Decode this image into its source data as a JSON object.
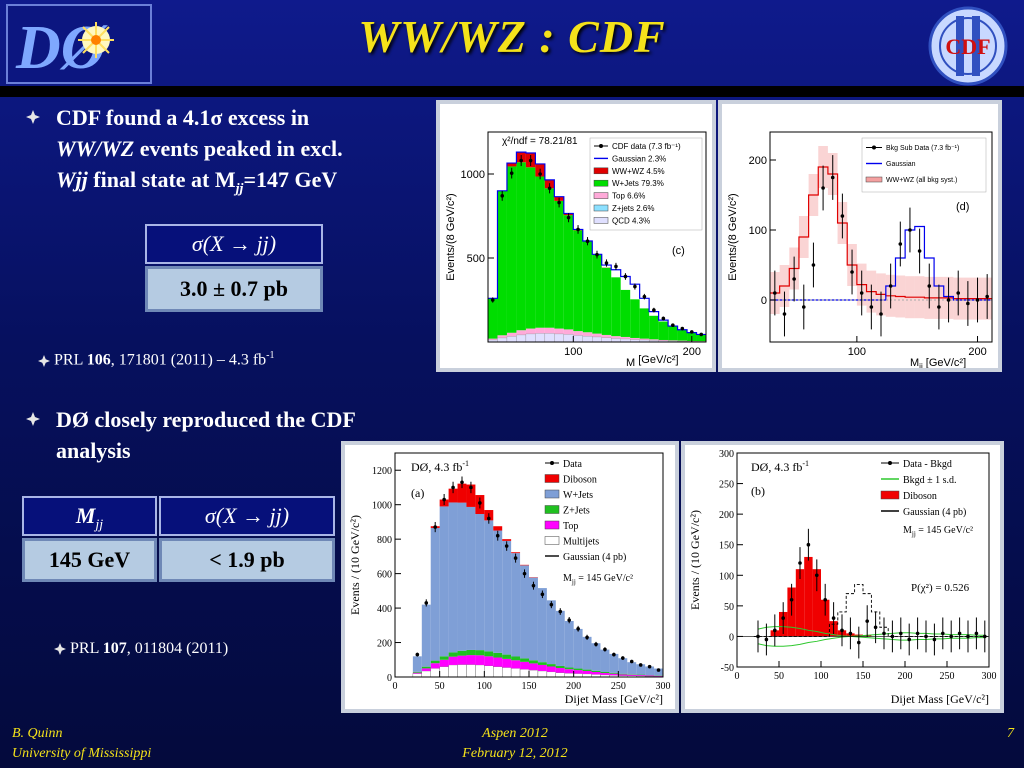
{
  "slide": {
    "title": "WW/WZ : CDF"
  },
  "logos": {
    "left": "DØ",
    "right": "CDF"
  },
  "bullets": {
    "cdf_found": {
      "l1": "CDF found a 4.1σ excess in",
      "l2a": "WW/WZ",
      "l2b": " events peaked in excl.",
      "l3a": "Wjj",
      "l3b": " final state at M",
      "l3sub": "jj",
      "l3c": "=147 GeV"
    },
    "cdf_box": {
      "header": "σ(X → jj)",
      "value": "3.0 ± 0.7 pb"
    },
    "cdf_ref": {
      "pre": "PRL ",
      "vol": "106",
      "post": ", 171801 (2011) – 4.3 fb",
      "sup": "-1"
    },
    "d0_repro": {
      "l1": "DØ closely reproduced the CDF",
      "l2": "analysis"
    },
    "d0_box": {
      "h1": "M",
      "h1sub": "jj",
      "h2": "σ(X → jj)",
      "v1": "145 GeV",
      "v2": "< 1.9 pb"
    },
    "d0_ref": {
      "pre": "PRL ",
      "vol": "107",
      "post": ", 011804 (2011)"
    }
  },
  "footer": {
    "author": "B. Quinn",
    "institution": "University of Mississippi",
    "conference": "Aspen 2012",
    "date": "February 12, 2012",
    "page": "7"
  },
  "chart_data": [
    {
      "type": "bar",
      "panel": "c",
      "ylabel": "Events/(8 GeV/c²)",
      "xlabel": "M",
      "xlabel_sub": "jj",
      "xlabel_unit": " [GeV/c²]",
      "chi2": "χ²/ndf = 78.21/81",
      "tag": "(c)",
      "xlim": [
        28,
        212
      ],
      "ylim": [
        0,
        1250
      ],
      "yticks": [
        500,
        1000
      ],
      "xticks": [
        100,
        200
      ],
      "legend": [
        "CDF data (7.3 fb⁻¹)",
        "Gaussian  2.3%",
        "WW+WZ 4.5%",
        "W+Jets 79.3%",
        "Top 6.6%",
        "Z+jets 2.6%",
        "QCD 4.3%"
      ],
      "colors": {
        "qcd": "#e0e0ff",
        "zjets": "#8ce0ff",
        "top": "#ffaad9",
        "wjets": "#00dd00",
        "wwwz": "#e00000",
        "gauss": "#0000ee"
      },
      "x": [
        32,
        40,
        48,
        56,
        64,
        72,
        80,
        88,
        96,
        104,
        112,
        120,
        128,
        136,
        144,
        152,
        160,
        168,
        176,
        184,
        192,
        200,
        208
      ],
      "wjets": [
        240,
        860,
        990,
        1000,
        960,
        900,
        830,
        760,
        680,
        600,
        540,
        470,
        400,
        350,
        280,
        230,
        180,
        140,
        110,
        85,
        65,
        50,
        40
      ],
      "top": [
        20,
        40,
        55,
        70,
        80,
        85,
        85,
        80,
        75,
        65,
        58,
        50,
        42,
        35,
        30,
        24,
        20,
        16,
        12,
        10,
        8,
        6,
        5
      ],
      "wwwz": [
        0,
        0,
        20,
        60,
        85,
        75,
        50,
        25,
        10,
        5,
        3,
        2,
        1,
        0,
        0,
        0,
        0,
        0,
        0,
        0,
        0,
        0,
        0
      ],
      "gauss": [
        0,
        0,
        0,
        0,
        0,
        0,
        0,
        0,
        0,
        0,
        0,
        0,
        15,
        45,
        80,
        90,
        60,
        25,
        8,
        0,
        0,
        0,
        0
      ],
      "data": [
        250,
        870,
        1005,
        1080,
        1080,
        1000,
        915,
        830,
        740,
        670,
        600,
        520,
        470,
        450,
        390,
        330,
        270,
        190,
        140,
        100,
        80,
        60,
        45
      ]
    },
    {
      "type": "scatter",
      "panel": "d",
      "ylabel": "Events/(8 GeV/c²)",
      "xlabel": "M",
      "xlabel_sub": "jj",
      "xlabel_unit": " [GeV/c²]",
      "tag": "(d)",
      "xlim": [
        28,
        212
      ],
      "ylim": [
        -60,
        240
      ],
      "yticks": [
        0,
        100,
        200
      ],
      "xticks": [
        100,
        200
      ],
      "legend": [
        "Bkg Sub Data (7.3 fb⁻¹)",
        "Gaussian",
        "WW+WZ (all bkg syst.)"
      ],
      "colors": {
        "wwwz": "#e00000",
        "gauss": "#0000ee",
        "band": "#f4a0a0"
      },
      "x": [
        32,
        40,
        48,
        56,
        64,
        72,
        80,
        88,
        96,
        104,
        112,
        120,
        128,
        136,
        144,
        152,
        160,
        168,
        176,
        184,
        192,
        200,
        208
      ],
      "data": [
        10,
        -20,
        30,
        -10,
        50,
        160,
        175,
        120,
        40,
        10,
        -10,
        -20,
        20,
        80,
        100,
        70,
        20,
        -10,
        0,
        10,
        -5,
        0,
        5
      ],
      "wwwz": [
        10,
        20,
        45,
        90,
        150,
        190,
        180,
        110,
        50,
        22,
        12,
        8,
        6,
        5,
        4,
        4,
        3,
        3,
        3,
        2,
        2,
        2,
        2
      ],
      "gauss": [
        0,
        0,
        0,
        0,
        0,
        0,
        0,
        0,
        0,
        0,
        0,
        0,
        20,
        60,
        100,
        105,
        60,
        20,
        5,
        0,
        0,
        0,
        0
      ]
    },
    {
      "type": "bar",
      "panel": "a",
      "title": "DØ, 4.3 fb",
      "title_sup": "-1",
      "tag": "(a)",
      "ylabel": "Events / (10 GeV/c²)",
      "xlabel": "Dijet Mass [GeV/c²]",
      "xlim": [
        0,
        300
      ],
      "ylim": [
        0,
        1300
      ],
      "yticks": [
        0,
        200,
        400,
        600,
        800,
        1000,
        1200
      ],
      "xticks": [
        0,
        50,
        100,
        150,
        200,
        250,
        300
      ],
      "legend": [
        "Data",
        "Diboson",
        "W+Jets",
        "Z+Jets",
        "Top",
        "Multijets",
        "Gaussian (4 pb)"
      ],
      "legend_note": "M",
      "legend_note_sub": "jj",
      "legend_note_post": " = 145 GeV/c²",
      "colors": {
        "multijets": "#ffffff",
        "top": "#ff00ff",
        "zjets": "#20c020",
        "wjets": "#7f9fd6",
        "diboson": "#f00000"
      },
      "x": [
        25,
        35,
        45,
        55,
        65,
        75,
        85,
        95,
        105,
        115,
        125,
        135,
        145,
        155,
        165,
        175,
        185,
        195,
        205,
        215,
        225,
        235,
        245,
        255,
        265,
        275,
        285,
        295
      ],
      "multijets": [
        20,
        35,
        50,
        60,
        70,
        72,
        72,
        70,
        65,
        60,
        55,
        50,
        45,
        40,
        35,
        30,
        25,
        22,
        20,
        18,
        15,
        12,
        10,
        8,
        7,
        6,
        5,
        4
      ],
      "top": [
        5,
        15,
        30,
        40,
        48,
        52,
        55,
        56,
        55,
        53,
        50,
        47,
        43,
        39,
        35,
        31,
        27,
        23,
        20,
        17,
        14,
        11,
        9,
        7,
        6,
        5,
        4,
        3
      ],
      "zjets": [
        5,
        10,
        15,
        20,
        25,
        28,
        30,
        30,
        29,
        27,
        25,
        22,
        20,
        18,
        16,
        14,
        12,
        10,
        9,
        8,
        7,
        6,
        5,
        4,
        3,
        3,
        2,
        2
      ],
      "wjets": [
        90,
        360,
        770,
        870,
        870,
        860,
        830,
        790,
        760,
        710,
        660,
        600,
        540,
        480,
        430,
        370,
        320,
        270,
        230,
        190,
        160,
        130,
        110,
        90,
        70,
        60,
        50,
        40
      ],
      "diboson": [
        0,
        0,
        10,
        40,
        80,
        110,
        130,
        110,
        60,
        25,
        10,
        5,
        3,
        2,
        0,
        0,
        0,
        0,
        0,
        0,
        0,
        0,
        0,
        0,
        0,
        0,
        0,
        0
      ],
      "data": [
        130,
        430,
        870,
        1030,
        1100,
        1130,
        1100,
        1010,
        920,
        820,
        760,
        690,
        600,
        530,
        480,
        420,
        380,
        330,
        280,
        230,
        190,
        160,
        130,
        110,
        90,
        70,
        60,
        40
      ]
    },
    {
      "type": "scatter",
      "panel": "b",
      "title": "DØ, 4.3 fb",
      "title_sup": "-1",
      "tag": "(b)",
      "ylabel": "Events / (10 GeV/c²)",
      "xlabel": "Dijet Mass [GeV/c²]",
      "xlim": [
        0,
        300
      ],
      "ylim": [
        -50,
        300
      ],
      "yticks": [
        -50,
        0,
        50,
        100,
        150,
        200,
        250,
        300
      ],
      "xticks": [
        0,
        50,
        100,
        150,
        200,
        250,
        300
      ],
      "legend": [
        "Data - Bkgd",
        "Bkgd ± 1 s.d.",
        "Diboson",
        "Gaussian (4 pb)"
      ],
      "legend_note": "M",
      "legend_note_sub": "jj",
      "legend_note_post": " = 145 GeV/c²",
      "pchi2": "P(χ²) = 0.526",
      "colors": {
        "diboson": "#f00000",
        "band": "#2ec82e",
        "gauss": "#000000"
      },
      "x": [
        25,
        35,
        45,
        55,
        65,
        75,
        85,
        95,
        105,
        115,
        125,
        135,
        145,
        155,
        165,
        175,
        185,
        195,
        205,
        215,
        225,
        235,
        245,
        255,
        265,
        275,
        285,
        295
      ],
      "data": [
        0,
        -5,
        10,
        30,
        60,
        120,
        150,
        100,
        60,
        30,
        10,
        5,
        -10,
        25,
        15,
        5,
        0,
        5,
        -5,
        5,
        0,
        -5,
        5,
        0,
        5,
        0,
        5,
        0
      ],
      "diboson": [
        0,
        0,
        10,
        40,
        80,
        110,
        130,
        110,
        60,
        25,
        10,
        5,
        3,
        2,
        0,
        0,
        0,
        0,
        0,
        0,
        0,
        0,
        0,
        0,
        0,
        0,
        0,
        0
      ],
      "band": [
        -12,
        -15,
        -16,
        -16,
        -15,
        -13,
        -10,
        -8,
        -5,
        -3,
        -1,
        0,
        1,
        2,
        3,
        4,
        5,
        6,
        6,
        5,
        5,
        4,
        4,
        3,
        3,
        3,
        2,
        2
      ],
      "gauss": [
        0,
        0,
        0,
        0,
        0,
        0,
        0,
        0,
        0,
        20,
        40,
        70,
        85,
        70,
        40,
        15,
        0,
        0,
        0,
        0,
        0,
        0,
        0,
        0,
        0,
        0,
        0,
        0
      ]
    }
  ]
}
